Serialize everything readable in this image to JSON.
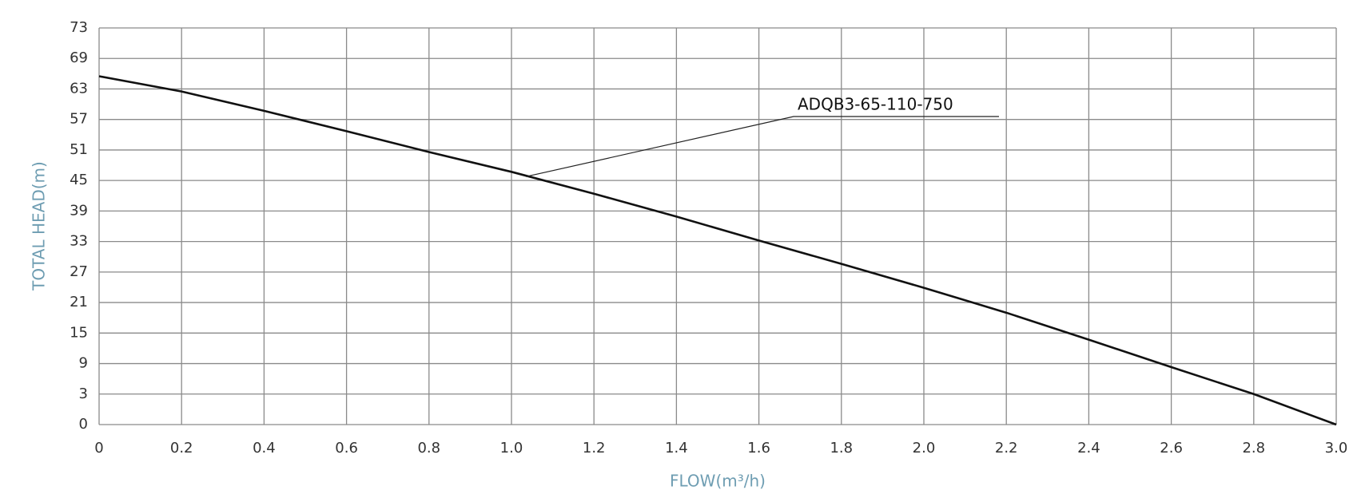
{
  "chart_data": {
    "type": "line",
    "xlabel": "FLOW(m³/h)",
    "ylabel": "TOTAL HEAD(m)",
    "x": [
      0,
      0.2,
      0.4,
      0.6,
      0.8,
      1.0,
      1.2,
      1.4,
      1.6,
      1.8,
      2.0,
      2.2,
      2.4,
      2.6,
      2.8,
      3.0
    ],
    "series": [
      {
        "name": "ADQB3-65-110-750",
        "color": "#111111",
        "values": [
          65.5,
          62.5,
          58.7,
          54.7,
          50.6,
          46.7,
          42.4,
          37.9,
          33.2,
          28.6,
          23.9,
          19.0,
          13.7,
          8.3,
          3.0,
          0
        ]
      }
    ],
    "xlim": [
      0,
      3.0
    ],
    "xticks": [
      0,
      0.2,
      0.4,
      0.6,
      0.8,
      {
        "value": 1,
        "label": "1.0"
      },
      1.2,
      1.4,
      1.6,
      1.8,
      {
        "value": 2,
        "label": "2.0"
      },
      2.2,
      2.4,
      2.6,
      2.8,
      {
        "value": 3,
        "label": "3.0"
      }
    ],
    "ylim": [
      0,
      73
    ],
    "yticks": [
      0,
      3,
      9,
      15,
      21,
      27,
      33,
      39,
      45,
      51,
      57,
      63,
      69,
      73
    ],
    "grid": true
  }
}
